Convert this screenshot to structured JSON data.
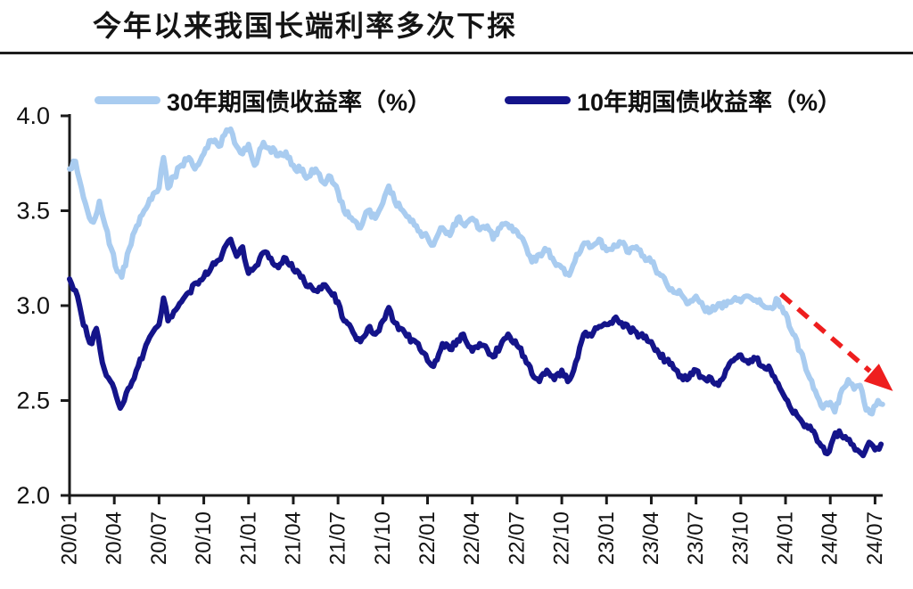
{
  "header": {
    "title": "今年以来我国长端利率多次下探"
  },
  "legend": [
    {
      "label": "30年期国债收益率（%）",
      "color": "#A9CCF0"
    },
    {
      "label": "10年期国债收益率（%）",
      "color": "#14148A"
    }
  ],
  "chart_data": {
    "type": "line",
    "title": "今年以来我国长端利率多次下探",
    "xlabel": "",
    "ylabel": "",
    "ylim": [
      2.0,
      4.0
    ],
    "y_ticks": [
      4.0,
      3.5,
      3.0,
      2.5,
      2.0
    ],
    "y_tick_labels": [
      "4.0",
      "3.5",
      "3.0",
      "2.5",
      "2.0"
    ],
    "x_tick_months": [
      0,
      3,
      6,
      9,
      12,
      15,
      18,
      21,
      24,
      27,
      30,
      33,
      36,
      39,
      42,
      45,
      48,
      51,
      54
    ],
    "x_tick_labels": [
      "20/01",
      "20/04",
      "20/07",
      "20/10",
      "21/01",
      "21/04",
      "21/07",
      "21/10",
      "22/01",
      "22/04",
      "22/07",
      "22/10",
      "23/01",
      "23/04",
      "23/07",
      "23/10",
      "24/01",
      "24/04",
      "24/07"
    ],
    "grid": false,
    "legend_position": "top",
    "axis_color": "#1a1a1a",
    "series": [
      {
        "name": "30年期国债收益率（%）",
        "color": "#A9CCF0",
        "points": [
          [
            0,
            3.72
          ],
          [
            0.4,
            3.76
          ],
          [
            0.8,
            3.62
          ],
          [
            1.2,
            3.5
          ],
          [
            1.6,
            3.44
          ],
          [
            2.0,
            3.55
          ],
          [
            2.4,
            3.42
          ],
          [
            2.8,
            3.3
          ],
          [
            3.2,
            3.18
          ],
          [
            3.5,
            3.15
          ],
          [
            4.0,
            3.3
          ],
          [
            4.5,
            3.42
          ],
          [
            5.0,
            3.5
          ],
          [
            5.5,
            3.56
          ],
          [
            6.0,
            3.62
          ],
          [
            6.3,
            3.78
          ],
          [
            6.6,
            3.62
          ],
          [
            7.0,
            3.68
          ],
          [
            7.5,
            3.74
          ],
          [
            8.0,
            3.78
          ],
          [
            8.4,
            3.72
          ],
          [
            9.0,
            3.8
          ],
          [
            9.5,
            3.87
          ],
          [
            10.0,
            3.84
          ],
          [
            10.4,
            3.9
          ],
          [
            10.8,
            3.93
          ],
          [
            11.2,
            3.84
          ],
          [
            11.6,
            3.8
          ],
          [
            12.0,
            3.85
          ],
          [
            12.4,
            3.74
          ],
          [
            13.0,
            3.86
          ],
          [
            13.4,
            3.83
          ],
          [
            14.0,
            3.79
          ],
          [
            14.5,
            3.81
          ],
          [
            15.0,
            3.74
          ],
          [
            15.5,
            3.71
          ],
          [
            16.0,
            3.68
          ],
          [
            16.5,
            3.72
          ],
          [
            17.0,
            3.65
          ],
          [
            17.5,
            3.68
          ],
          [
            18.0,
            3.6
          ],
          [
            18.4,
            3.5
          ],
          [
            19.0,
            3.45
          ],
          [
            19.5,
            3.41
          ],
          [
            20.0,
            3.5
          ],
          [
            20.5,
            3.46
          ],
          [
            21.0,
            3.54
          ],
          [
            21.4,
            3.63
          ],
          [
            21.8,
            3.55
          ],
          [
            22.2,
            3.51
          ],
          [
            22.6,
            3.47
          ],
          [
            23.0,
            3.45
          ],
          [
            23.5,
            3.39
          ],
          [
            24.0,
            3.36
          ],
          [
            24.4,
            3.32
          ],
          [
            25.0,
            3.41
          ],
          [
            25.5,
            3.37
          ],
          [
            26.0,
            3.46
          ],
          [
            26.5,
            3.42
          ],
          [
            27.0,
            3.46
          ],
          [
            27.5,
            3.4
          ],
          [
            28.0,
            3.42
          ],
          [
            28.4,
            3.35
          ],
          [
            29.0,
            3.43
          ],
          [
            29.5,
            3.41
          ],
          [
            30.0,
            3.39
          ],
          [
            30.5,
            3.33
          ],
          [
            31.0,
            3.23
          ],
          [
            31.5,
            3.27
          ],
          [
            32.0,
            3.29
          ],
          [
            32.5,
            3.23
          ],
          [
            33.0,
            3.2
          ],
          [
            33.5,
            3.16
          ],
          [
            34.0,
            3.27
          ],
          [
            34.5,
            3.33
          ],
          [
            35.0,
            3.31
          ],
          [
            35.5,
            3.35
          ],
          [
            36.0,
            3.29
          ],
          [
            36.5,
            3.32
          ],
          [
            37.0,
            3.33
          ],
          [
            37.5,
            3.28
          ],
          [
            38.0,
            3.31
          ],
          [
            38.5,
            3.26
          ],
          [
            39.0,
            3.23
          ],
          [
            39.5,
            3.17
          ],
          [
            40.0,
            3.12
          ],
          [
            40.5,
            3.07
          ],
          [
            41.0,
            3.06
          ],
          [
            41.4,
            3.01
          ],
          [
            42.0,
            3.05
          ],
          [
            42.5,
            2.99
          ],
          [
            43.0,
            2.97
          ],
          [
            43.5,
            3.01
          ],
          [
            44.0,
            3.0
          ],
          [
            44.5,
            3.03
          ],
          [
            45.0,
            3.02
          ],
          [
            45.5,
            3.05
          ],
          [
            46.0,
            3.03
          ],
          [
            46.5,
            3.0
          ],
          [
            47.0,
            2.99
          ],
          [
            47.5,
            3.03
          ],
          [
            48.0,
            2.96
          ],
          [
            48.5,
            2.85
          ],
          [
            49.0,
            2.76
          ],
          [
            49.5,
            2.64
          ],
          [
            50.0,
            2.55
          ],
          [
            50.5,
            2.46
          ],
          [
            51.0,
            2.49
          ],
          [
            51.3,
            2.44
          ],
          [
            51.8,
            2.56
          ],
          [
            52.2,
            2.61
          ],
          [
            52.6,
            2.56
          ],
          [
            53.0,
            2.58
          ],
          [
            53.4,
            2.45
          ],
          [
            53.8,
            2.43
          ],
          [
            54.2,
            2.5
          ],
          [
            54.5,
            2.48
          ]
        ]
      },
      {
        "name": "10年期国债收益率（%）",
        "color": "#14148A",
        "points": [
          [
            0,
            3.14
          ],
          [
            0.4,
            3.08
          ],
          [
            0.8,
            2.95
          ],
          [
            1.2,
            2.84
          ],
          [
            1.5,
            2.8
          ],
          [
            1.8,
            2.88
          ],
          [
            2.2,
            2.7
          ],
          [
            2.6,
            2.62
          ],
          [
            3.0,
            2.56
          ],
          [
            3.4,
            2.46
          ],
          [
            3.8,
            2.54
          ],
          [
            4.2,
            2.6
          ],
          [
            4.6,
            2.68
          ],
          [
            5.0,
            2.76
          ],
          [
            5.5,
            2.85
          ],
          [
            6.0,
            2.9
          ],
          [
            6.3,
            3.04
          ],
          [
            6.6,
            2.92
          ],
          [
            7.0,
            2.97
          ],
          [
            7.5,
            3.02
          ],
          [
            8.0,
            3.07
          ],
          [
            8.5,
            3.12
          ],
          [
            9.0,
            3.15
          ],
          [
            9.5,
            3.2
          ],
          [
            10.0,
            3.24
          ],
          [
            10.5,
            3.32
          ],
          [
            10.8,
            3.35
          ],
          [
            11.2,
            3.26
          ],
          [
            11.6,
            3.31
          ],
          [
            12.0,
            3.17
          ],
          [
            12.5,
            3.21
          ],
          [
            13.0,
            3.28
          ],
          [
            13.5,
            3.25
          ],
          [
            14.0,
            3.2
          ],
          [
            14.5,
            3.25
          ],
          [
            15.0,
            3.19
          ],
          [
            15.5,
            3.15
          ],
          [
            16.0,
            3.1
          ],
          [
            16.5,
            3.08
          ],
          [
            17.0,
            3.11
          ],
          [
            17.5,
            3.07
          ],
          [
            18.0,
            3.02
          ],
          [
            18.4,
            2.92
          ],
          [
            19.0,
            2.86
          ],
          [
            19.5,
            2.81
          ],
          [
            20.0,
            2.88
          ],
          [
            20.5,
            2.85
          ],
          [
            21.0,
            2.92
          ],
          [
            21.4,
            2.99
          ],
          [
            21.8,
            2.91
          ],
          [
            22.2,
            2.88
          ],
          [
            22.6,
            2.84
          ],
          [
            23.0,
            2.82
          ],
          [
            23.5,
            2.77
          ],
          [
            24.0,
            2.71
          ],
          [
            24.4,
            2.68
          ],
          [
            25.0,
            2.8
          ],
          [
            25.5,
            2.77
          ],
          [
            26.0,
            2.82
          ],
          [
            26.4,
            2.85
          ],
          [
            27.0,
            2.76
          ],
          [
            27.5,
            2.8
          ],
          [
            28.0,
            2.77
          ],
          [
            28.4,
            2.73
          ],
          [
            29.0,
            2.81
          ],
          [
            29.4,
            2.85
          ],
          [
            30.0,
            2.79
          ],
          [
            30.5,
            2.73
          ],
          [
            31.0,
            2.64
          ],
          [
            31.5,
            2.6
          ],
          [
            32.0,
            2.66
          ],
          [
            32.5,
            2.61
          ],
          [
            33.0,
            2.66
          ],
          [
            33.4,
            2.6
          ],
          [
            33.8,
            2.66
          ],
          [
            34.2,
            2.78
          ],
          [
            34.6,
            2.86
          ],
          [
            35.0,
            2.84
          ],
          [
            35.5,
            2.89
          ],
          [
            36.0,
            2.9
          ],
          [
            36.5,
            2.93
          ],
          [
            37.0,
            2.91
          ],
          [
            37.5,
            2.88
          ],
          [
            38.0,
            2.86
          ],
          [
            38.5,
            2.83
          ],
          [
            39.0,
            2.81
          ],
          [
            39.5,
            2.75
          ],
          [
            40.0,
            2.71
          ],
          [
            40.5,
            2.67
          ],
          [
            41.0,
            2.63
          ],
          [
            41.4,
            2.61
          ],
          [
            42.0,
            2.66
          ],
          [
            42.5,
            2.62
          ],
          [
            43.0,
            2.62
          ],
          [
            43.5,
            2.58
          ],
          [
            44.0,
            2.66
          ],
          [
            44.5,
            2.71
          ],
          [
            45.0,
            2.74
          ],
          [
            45.4,
            2.71
          ],
          [
            46.0,
            2.72
          ],
          [
            46.5,
            2.68
          ],
          [
            47.0,
            2.66
          ],
          [
            47.5,
            2.59
          ],
          [
            48.0,
            2.51
          ],
          [
            48.4,
            2.45
          ],
          [
            49.0,
            2.4
          ],
          [
            49.4,
            2.37
          ],
          [
            50.0,
            2.32
          ],
          [
            50.4,
            2.26
          ],
          [
            50.8,
            2.22
          ],
          [
            51.2,
            2.3
          ],
          [
            51.6,
            2.34
          ],
          [
            52.0,
            2.31
          ],
          [
            52.4,
            2.27
          ],
          [
            52.8,
            2.24
          ],
          [
            53.2,
            2.21
          ],
          [
            53.6,
            2.28
          ],
          [
            54.0,
            2.24
          ],
          [
            54.4,
            2.27
          ]
        ]
      }
    ],
    "annotation_arrow": {
      "from": [
        47.7,
        3.06
      ],
      "to": [
        55.2,
        2.55
      ],
      "color": "#EE1E1E",
      "style": "dashed"
    },
    "style": {
      "jitter": 0.018,
      "line_width": 6
    }
  }
}
